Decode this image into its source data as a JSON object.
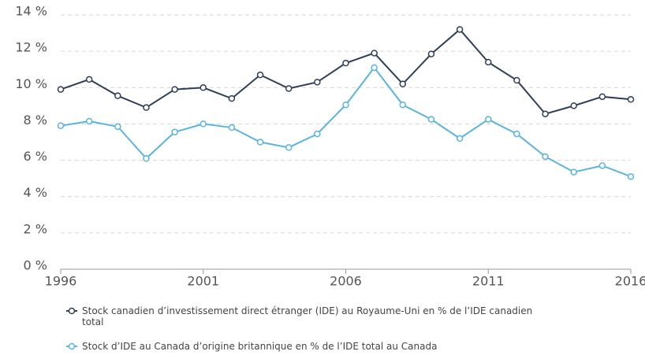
{
  "chart_data": {
    "type": "line",
    "x": [
      1996,
      1997,
      1998,
      1999,
      2000,
      2001,
      2002,
      2003,
      2004,
      2005,
      2006,
      2007,
      2008,
      2009,
      2010,
      2011,
      2012,
      2013,
      2014,
      2015,
      2016
    ],
    "series": [
      {
        "name": "Stock canadien d’investissement direct étranger (IDE) au Royaume-Uni en % de l’IDE canadien total",
        "color": "#2e4057",
        "values": [
          9.9,
          10.45,
          9.55,
          8.9,
          9.9,
          10.0,
          9.4,
          10.7,
          9.95,
          10.3,
          11.35,
          11.9,
          10.2,
          11.85,
          13.2,
          11.4,
          10.4,
          8.55,
          9.0,
          9.5,
          9.35
        ]
      },
      {
        "name": "Stock d’IDE au Canada d’origine britannique en % de l’IDE total au Canada",
        "color": "#5ab4e0",
        "values": [
          7.9,
          8.15,
          7.85,
          6.1,
          7.55,
          8.0,
          7.8,
          7.0,
          6.7,
          7.45,
          9.05,
          11.1,
          9.05,
          8.25,
          7.2,
          8.25,
          7.45,
          6.2,
          5.35,
          5.7,
          5.1
        ]
      }
    ],
    "xlim": [
      1996,
      2016
    ],
    "xticks": [
      1996,
      2001,
      2006,
      2011,
      2016
    ],
    "ylim": [
      0,
      14
    ],
    "yticks": [
      {
        "value": 0,
        "label": "0 %"
      },
      {
        "value": 2,
        "label": "2 %"
      },
      {
        "value": 4,
        "label": "4 %"
      },
      {
        "value": 6,
        "label": "6 %"
      },
      {
        "value": 8,
        "label": "8 %"
      },
      {
        "value": 10,
        "label": "10 %"
      },
      {
        "value": 12,
        "label": "12 %"
      },
      {
        "value": 14,
        "label": "14 %"
      }
    ],
    "grid": true
  }
}
